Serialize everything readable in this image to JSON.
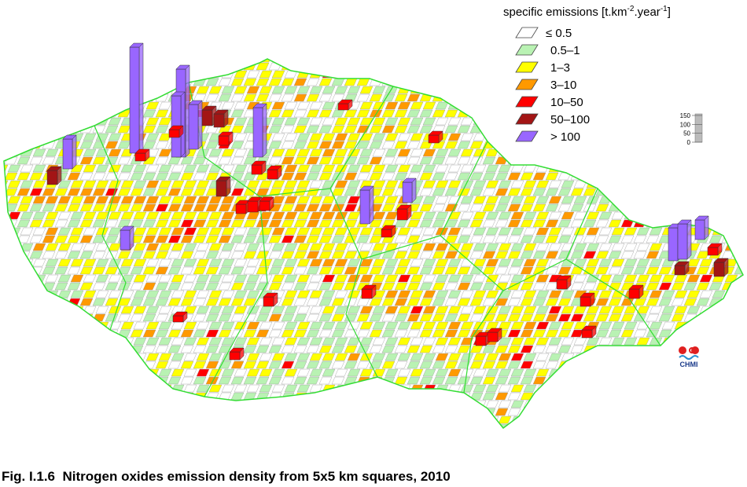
{
  "legend": {
    "title": {
      "text": "specific emissions [t.km",
      "sup1": "-2",
      "mid": ".year",
      "sup2": "-1",
      "end": "]"
    },
    "items": [
      {
        "label": "≤ 0.5",
        "color": "#ffffff"
      },
      {
        "label": "0.5–1",
        "color": "#b9f2b3"
      },
      {
        "label": "1–3",
        "color": "#ffff00"
      },
      {
        "label": "3–10",
        "color": "#ff9900"
      },
      {
        "label": "10–50",
        "color": "#ff0000"
      },
      {
        "label": "50–100",
        "color": "#a31515"
      },
      {
        "label": "> 100",
        "color": "#9966ff"
      }
    ]
  },
  "scale": {
    "ticks": [
      150,
      100,
      50,
      0
    ]
  },
  "logo": {
    "text": "CHMI"
  },
  "caption": "Fig. I.1.6  Nitrogen oxides emission density from 5x5 km squares, 2010"
}
